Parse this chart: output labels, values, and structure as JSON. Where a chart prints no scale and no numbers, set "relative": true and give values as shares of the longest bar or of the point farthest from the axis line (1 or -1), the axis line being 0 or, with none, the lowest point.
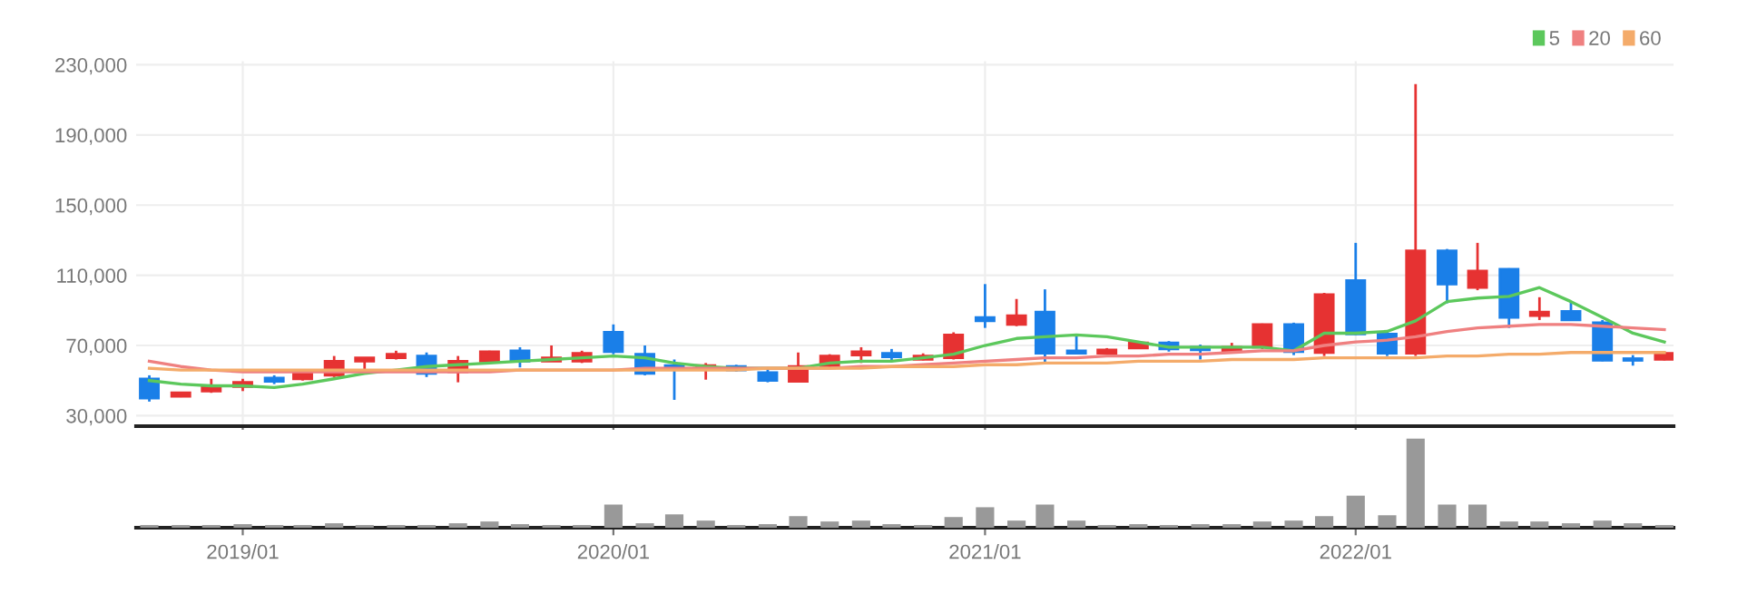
{
  "chart_data": [
    {
      "type": "candlestick",
      "x": [
        "2018-10",
        "2018-11",
        "2018-12",
        "2019-01",
        "2019-02",
        "2019-03",
        "2019-04",
        "2019-05",
        "2019-06",
        "2019-07",
        "2019-08",
        "2019-09",
        "2019-10",
        "2019-11",
        "2019-12",
        "2020-01",
        "2020-02",
        "2020-03",
        "2020-04",
        "2020-05",
        "2020-06",
        "2020-07",
        "2020-08",
        "2020-09",
        "2020-10",
        "2020-11",
        "2020-12",
        "2021-01",
        "2021-02",
        "2021-03",
        "2021-04",
        "2021-05",
        "2021-06",
        "2021-07",
        "2021-08",
        "2021-09",
        "2021-10",
        "2021-11",
        "2021-12",
        "2022-01",
        "2022-02",
        "2022-03",
        "2022-04",
        "2022-05",
        "2022-06",
        "2022-07",
        "2022-08",
        "2022-09",
        "2022-10",
        "2022-11"
      ],
      "ohlc": [
        [
          51000,
          53000,
          38000,
          40000
        ],
        [
          41000,
          43000,
          40500,
          43000
        ],
        [
          44000,
          51000,
          43000,
          47000
        ],
        [
          46500,
          51000,
          44000,
          49000
        ],
        [
          51500,
          53000,
          48000,
          49500
        ],
        [
          51000,
          55000,
          50000,
          54000
        ],
        [
          53000,
          64000,
          52000,
          61000
        ],
        [
          61000,
          63000,
          55000,
          63000
        ],
        [
          63000,
          67000,
          62000,
          65000
        ],
        [
          64000,
          66000,
          52000,
          54000
        ],
        [
          55000,
          64000,
          49000,
          61000
        ],
        [
          61000,
          67000,
          60000,
          66500
        ],
        [
          67000,
          69000,
          57500,
          61000
        ],
        [
          61000,
          70000,
          61000,
          63000
        ],
        [
          61000,
          67000,
          60000,
          65500
        ],
        [
          77500,
          82000,
          65000,
          66500
        ],
        [
          65000,
          70000,
          53000,
          54000
        ],
        [
          58500,
          62000,
          39000,
          57000
        ],
        [
          57000,
          60000,
          50500,
          58500
        ],
        [
          58000,
          59000,
          55000,
          56000
        ],
        [
          54500,
          57000,
          49000,
          50000
        ],
        [
          49500,
          66000,
          49000,
          58000
        ],
        [
          58500,
          65000,
          57000,
          64000
        ],
        [
          64500,
          69000,
          60000,
          66500
        ],
        [
          65500,
          68000,
          61000,
          63500
        ],
        [
          62000,
          65500,
          61500,
          64000
        ],
        [
          63000,
          77500,
          62000,
          76000
        ],
        [
          86000,
          105000,
          80000,
          84000
        ],
        [
          82000,
          96500,
          81000,
          87000
        ],
        [
          89000,
          102000,
          60000,
          65500
        ],
        [
          67000,
          76500,
          65000,
          65500
        ],
        [
          65500,
          68500,
          65000,
          67500
        ],
        [
          68500,
          72500,
          68000,
          71500
        ],
        [
          71500,
          72500,
          66500,
          68000
        ],
        [
          69000,
          70500,
          62000,
          67500
        ],
        [
          67000,
          71500,
          66000,
          69000
        ],
        [
          69000,
          82500,
          68000,
          82000
        ],
        [
          82000,
          83000,
          64500,
          66500
        ],
        [
          66000,
          100000,
          64000,
          99000
        ],
        [
          107000,
          128500,
          76000,
          76500
        ],
        [
          76500,
          78000,
          64000,
          65500
        ],
        [
          65500,
          219000,
          64000,
          124000
        ],
        [
          124000,
          125000,
          94000,
          105000
        ],
        [
          103000,
          128500,
          101500,
          112500
        ],
        [
          113500,
          114000,
          80000,
          86000
        ],
        [
          87000,
          97500,
          84500,
          89000
        ],
        [
          89500,
          95000,
          84000,
          84500
        ],
        [
          83000,
          84500,
          61000,
          61500
        ],
        [
          62500,
          64500,
          58500,
          61500
        ],
        [
          62000,
          66500,
          61500,
          65500
        ]
      ],
      "colors": [
        "#1a7fe8",
        "#e63232",
        "#e63232",
        "#e63232",
        "#1a7fe8",
        "#e63232",
        "#e63232",
        "#e63232",
        "#e63232",
        "#1a7fe8",
        "#e63232",
        "#e63232",
        "#1a7fe8",
        "#e63232",
        "#e63232",
        "#1a7fe8",
        "#1a7fe8",
        "#1a7fe8",
        "#e63232",
        "#1a7fe8",
        "#1a7fe8",
        "#e63232",
        "#e63232",
        "#e63232",
        "#1a7fe8",
        "#e63232",
        "#e63232",
        "#1a7fe8",
        "#e63232",
        "#1a7fe8",
        "#1a7fe8",
        "#e63232",
        "#e63232",
        "#1a7fe8",
        "#1a7fe8",
        "#e63232",
        "#e63232",
        "#1a7fe8",
        "#e63232",
        "#1a7fe8",
        "#1a7fe8",
        "#e63232",
        "#1a7fe8",
        "#e63232",
        "#1a7fe8",
        "#e63232",
        "#1a7fe8",
        "#1a7fe8",
        "#1a7fe8",
        "#e63232"
      ],
      "series": [
        {
          "name": "5",
          "type": "line",
          "color": "#5cc85c",
          "values": [
            50000,
            48000,
            47000,
            47000,
            46000,
            48000,
            51000,
            54000,
            56000,
            58000,
            59000,
            60000,
            61000,
            62000,
            63000,
            64000,
            63000,
            60000,
            58000,
            57000,
            57000,
            57000,
            60000,
            61000,
            61000,
            63000,
            65000,
            70000,
            74000,
            75000,
            76000,
            75000,
            72000,
            69000,
            69000,
            69000,
            69000,
            67000,
            77000,
            77000,
            78000,
            84000,
            95000,
            97000,
            98000,
            103000,
            95000,
            86000,
            77000,
            72000
          ]
        },
        {
          "name": "20",
          "type": "line",
          "color": "#ef8080",
          "values": [
            61000,
            58000,
            56000,
            55000,
            55000,
            55000,
            55000,
            55000,
            55000,
            55000,
            55000,
            55000,
            56000,
            56000,
            56000,
            56000,
            57000,
            57000,
            57000,
            57000,
            57000,
            57000,
            57000,
            58000,
            58000,
            59000,
            60000,
            61000,
            62000,
            63000,
            63000,
            64000,
            64000,
            65000,
            65000,
            66000,
            67000,
            67000,
            70000,
            72000,
            73000,
            75000,
            78000,
            80000,
            81000,
            82000,
            82000,
            81000,
            80000,
            79000
          ]
        },
        {
          "name": "60",
          "type": "line",
          "color": "#f4ab6a",
          "values": [
            57000,
            56000,
            56000,
            56000,
            56000,
            56000,
            56000,
            56000,
            56000,
            56000,
            56000,
            56000,
            56000,
            56000,
            56000,
            56000,
            56000,
            56000,
            56000,
            56000,
            57000,
            57000,
            57000,
            57000,
            58000,
            58000,
            58000,
            59000,
            59000,
            60000,
            60000,
            60000,
            61000,
            61000,
            61000,
            62000,
            62000,
            62000,
            63000,
            63000,
            63000,
            63000,
            64000,
            64000,
            65000,
            65000,
            66000,
            66000,
            66000,
            66000
          ]
        }
      ],
      "xlim": [
        "2018-09-18",
        "2022-11-10"
      ],
      "xticks": [
        {
          "value": "2019-01",
          "label": null
        },
        {
          "value": "2020-01",
          "label": null
        },
        {
          "value": "2021-01",
          "label": null
        },
        {
          "value": "2022-01",
          "label": null
        }
      ],
      "ylim": [
        24000,
        232000
      ],
      "yticks": [
        {
          "value": 30000,
          "label": "30,000"
        },
        {
          "value": 70000,
          "label": "70,000"
        },
        {
          "value": 110000,
          "label": "110,000"
        },
        {
          "value": 150000,
          "label": "150,000"
        },
        {
          "value": 190000,
          "label": "190,000"
        },
        {
          "value": 230000,
          "label": "230,000"
        }
      ],
      "grid": true,
      "legend": "top right",
      "tick_labels": "y"
    },
    {
      "type": "bar",
      "relative": true,
      "color": "#999999",
      "x": [
        "2018-10",
        "2018-11",
        "2018-12",
        "2019-01",
        "2019-02",
        "2019-03",
        "2019-04",
        "2019-05",
        "2019-06",
        "2019-07",
        "2019-08",
        "2019-09",
        "2019-10",
        "2019-11",
        "2019-12",
        "2020-01",
        "2020-02",
        "2020-03",
        "2020-04",
        "2020-05",
        "2020-06",
        "2020-07",
        "2020-08",
        "2020-09",
        "2020-10",
        "2020-11",
        "2020-12",
        "2021-01",
        "2021-02",
        "2021-03",
        "2021-04",
        "2021-05",
        "2021-06",
        "2021-07",
        "2021-08",
        "2021-09",
        "2021-10",
        "2021-11",
        "2021-12",
        "2022-01",
        "2022-02",
        "2022-03",
        "2022-04",
        "2022-05",
        "2022-06",
        "2022-07",
        "2022-08",
        "2022-09",
        "2022-10",
        "2022-11"
      ],
      "values": [
        0.03,
        0.03,
        0.03,
        0.04,
        0.03,
        0.03,
        0.05,
        0.03,
        0.03,
        0.03,
        0.05,
        0.07,
        0.04,
        0.03,
        0.03,
        0.26,
        0.05,
        0.15,
        0.08,
        0.03,
        0.04,
        0.13,
        0.07,
        0.08,
        0.04,
        0.03,
        0.12,
        0.23,
        0.08,
        0.26,
        0.08,
        0.03,
        0.04,
        0.03,
        0.04,
        0.04,
        0.07,
        0.08,
        0.13,
        0.36,
        0.14,
        1,
        0.26,
        0.26,
        0.07,
        0.07,
        0.05,
        0.08,
        0.05,
        0.03
      ],
      "xlim": [
        "2018-09-18",
        "2022-11-10"
      ],
      "xticks": [
        {
          "value": "2019-01",
          "label": "2019/01"
        },
        {
          "value": "2020-01",
          "label": "2020/01"
        },
        {
          "value": "2021-01",
          "label": "2021/01"
        },
        {
          "value": "2022-01",
          "label": "2022/01"
        }
      ],
      "tick_labels": "x"
    }
  ]
}
